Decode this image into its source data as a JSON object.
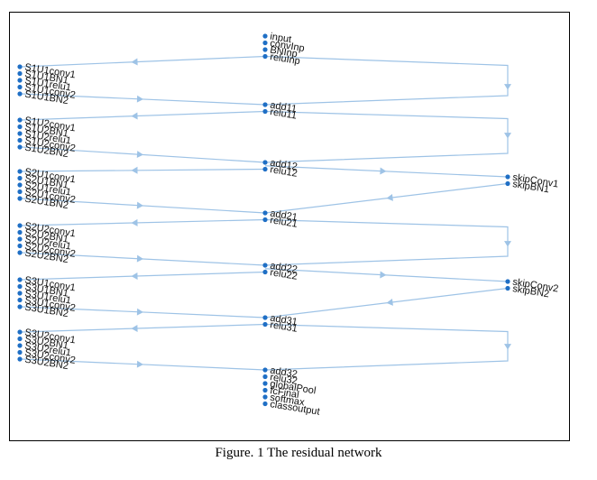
{
  "caption": "Figure. 1 The residual network",
  "groups": {
    "top": [
      "input",
      "convInp",
      "BNInp",
      "reluInp"
    ],
    "add11": [
      "add11",
      "relu11"
    ],
    "add12": [
      "add12",
      "relu12"
    ],
    "add21": [
      "add21",
      "relu21"
    ],
    "add22": [
      "add22",
      "relu22"
    ],
    "add31": [
      "add31",
      "relu31"
    ],
    "bottom": [
      "add32",
      "relu32",
      "globalPool",
      "fcFinal",
      "softmax",
      "classoutput"
    ],
    "S1U1": [
      "S1U1conv1",
      "S1U1BN1",
      "S1U1relu1",
      "S1U1conv2",
      "S1U1BN2"
    ],
    "S1U2": [
      "S1U2conv1",
      "S1U2BN1",
      "S1U2relu1",
      "S1U2conv2",
      "S1U2BN2"
    ],
    "S2U1": [
      "S2U1conv1",
      "S2U1BN1",
      "S2U1relu1",
      "S2U1conv2",
      "S2U1BN2"
    ],
    "S2U2": [
      "S2U2conv1",
      "S2U2BN1",
      "S2U2relu1",
      "S2U2conv2",
      "S2U2BN2"
    ],
    "S3U1": [
      "S3U1conv1",
      "S3U1BN1",
      "S3U1relu1",
      "S3U1conv2",
      "S3U1BN2"
    ],
    "S3U2": [
      "S3U2conv1",
      "S3U2BN1",
      "S3U2relu1",
      "S3U2conv2",
      "S3U2BN2"
    ],
    "skip1": [
      "skipConv1",
      "skipBN1"
    ],
    "skip2": [
      "skipConv2",
      "skipBN2"
    ]
  },
  "colors": {
    "edge": "#9ec3e6",
    "node": "#1f6fc5"
  }
}
